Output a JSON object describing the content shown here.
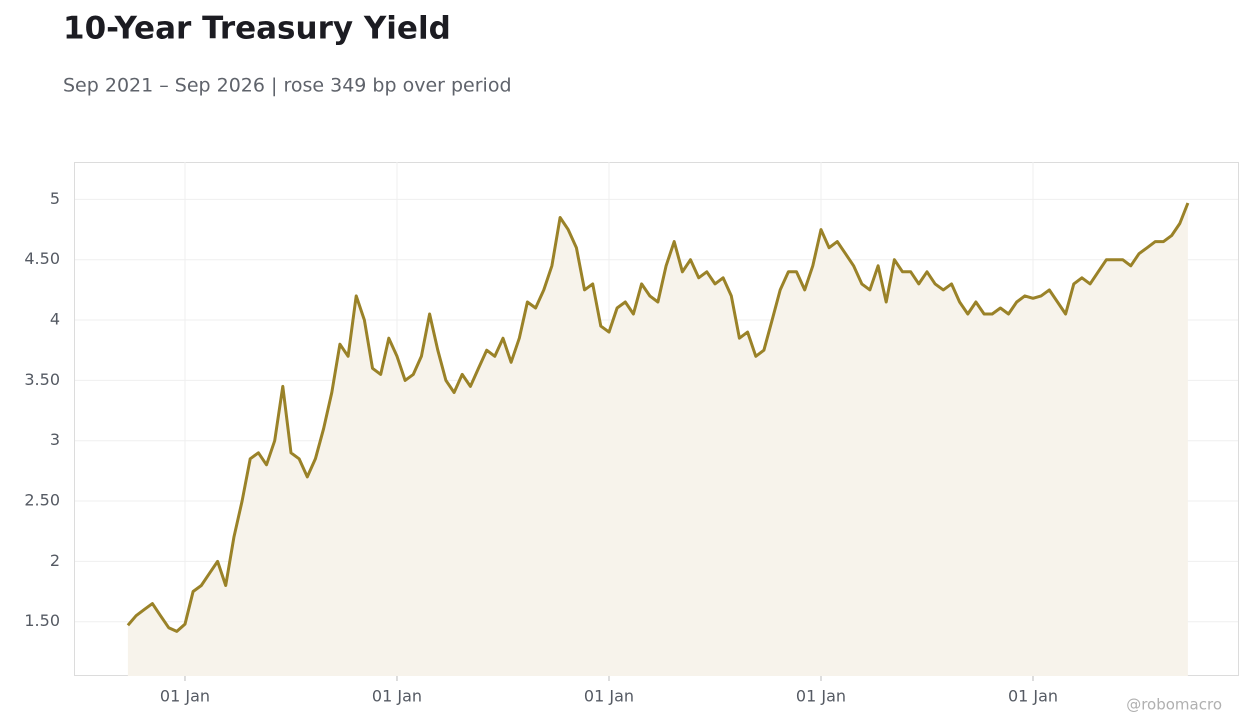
{
  "chart_data": {
    "type": "line",
    "title": "10-Year Treasury Yield",
    "subtitle": "Sep 2021 – Sep 2026 | rose 349 bp over period",
    "credit": "@robomacro",
    "color": "#9a8228",
    "fill_color": "#f7f3eb",
    "grid": true,
    "categories": [
      null,
      null,
      null,
      null,
      null,
      null,
      null,
      "01 Jan",
      null,
      null,
      null,
      null,
      null,
      null,
      null,
      null,
      null,
      null,
      null,
      null,
      null,
      null,
      null,
      null,
      null,
      null,
      null,
      null,
      null,
      null,
      null,
      null,
      null,
      "01 Jan",
      null,
      null,
      null,
      null,
      null,
      null,
      null,
      null,
      null,
      null,
      null,
      null,
      null,
      null,
      null,
      null,
      null,
      null,
      null,
      null,
      null,
      null,
      null,
      null,
      null,
      "01 Jan",
      null,
      null,
      null,
      null,
      null,
      null,
      null,
      null,
      null,
      null,
      null,
      null,
      null,
      null,
      null,
      null,
      null,
      null,
      null,
      null,
      null,
      null,
      null,
      null,
      null,
      "01 Jan",
      null,
      null,
      null,
      null,
      null,
      null,
      null,
      null,
      null,
      null,
      null,
      null,
      null,
      null,
      null,
      null,
      null,
      null,
      null,
      null,
      null,
      null,
      null,
      null,
      null,
      "01 Jan",
      null,
      null,
      null,
      null,
      null,
      null,
      null,
      null,
      null,
      null,
      null,
      null,
      null,
      null,
      null,
      null,
      null,
      null,
      null
    ],
    "values": [
      1.47,
      1.55,
      1.6,
      1.65,
      1.55,
      1.45,
      1.42,
      1.48,
      1.75,
      1.8,
      1.9,
      2.0,
      1.8,
      2.2,
      2.5,
      2.85,
      2.9,
      2.8,
      3.0,
      3.45,
      2.9,
      2.85,
      2.7,
      2.85,
      3.1,
      3.4,
      3.8,
      3.7,
      4.2,
      4.0,
      3.6,
      3.55,
      3.85,
      3.7,
      3.5,
      3.55,
      3.7,
      4.05,
      3.75,
      3.5,
      3.4,
      3.55,
      3.45,
      3.6,
      3.75,
      3.7,
      3.85,
      3.65,
      3.85,
      4.15,
      4.1,
      4.25,
      4.45,
      4.85,
      4.75,
      4.6,
      4.25,
      4.3,
      3.95,
      3.9,
      4.1,
      4.15,
      4.05,
      4.3,
      4.2,
      4.15,
      4.45,
      4.65,
      4.4,
      4.5,
      4.35,
      4.4,
      4.3,
      4.35,
      4.2,
      3.85,
      3.9,
      3.7,
      3.75,
      4.0,
      4.25,
      4.4,
      4.4,
      4.25,
      4.45,
      4.75,
      4.6,
      4.65,
      4.55,
      4.45,
      4.3,
      4.25,
      4.45,
      4.15,
      4.5,
      4.4,
      4.4,
      4.3,
      4.4,
      4.3,
      4.25,
      4.3,
      4.15,
      4.05,
      4.15,
      4.05,
      4.05,
      4.1,
      4.05,
      4.15,
      4.2,
      4.18,
      4.2,
      4.25,
      4.15,
      4.05,
      4.3,
      4.35,
      4.3,
      4.4,
      4.5,
      4.5,
      4.5,
      4.45,
      4.55,
      4.6,
      4.65,
      4.65,
      4.7,
      4.8,
      4.97
    ],
    "ylim": [
      1.05,
      5.31
    ],
    "yticks": [
      {
        "value": 1.5,
        "label": "1.50"
      },
      2,
      {
        "value": 2.5,
        "label": "2.50"
      },
      3,
      {
        "value": 3.5,
        "label": "3.50"
      },
      4,
      {
        "value": 4.5,
        "label": "4.50"
      },
      5
    ]
  }
}
